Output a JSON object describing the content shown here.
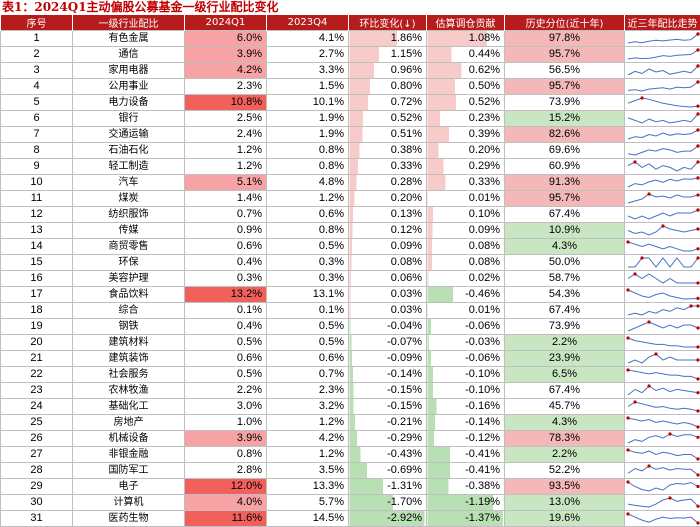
{
  "caption": "表1：2024Q1主动偏股公募基金一级行业配比变化",
  "columns": [
    "序号",
    "一级行业配比",
    "2024Q1",
    "2023Q4",
    "环比变化(↓)",
    "估算调仓贡献",
    "历史分位(近十年)",
    "近三年配比走势"
  ],
  "colors": {
    "header": "#b71c1c",
    "high_fill": "#f2605c",
    "mid_fill": "#f7a3a5",
    "pct_high": "#f4b8b8",
    "pct_low": "#c9e6c3",
    "bar_positive": "#f8cbcb",
    "bar_negative": "#b9dfb4",
    "sparkline": "#4472c4",
    "marker": "#c00000"
  },
  "rows": [
    {
      "no": "1",
      "industry": "有色金属",
      "q1": "6.0%",
      "q4": "4.1%",
      "chg": "1.86%",
      "chg_val": 1.86,
      "contrib": "1.08%",
      "contrib_val": 1.08,
      "pct": "97.8%",
      "pct_val": 97.8,
      "trend": [
        3.0,
        3.4,
        3.1,
        3.6,
        3.9,
        3.7,
        4.0,
        4.2,
        3.9,
        4.1,
        6.0
      ]
    },
    {
      "no": "2",
      "industry": "通信",
      "q1": "3.9%",
      "q4": "2.7%",
      "chg": "1.15%",
      "chg_val": 1.15,
      "contrib": "0.44%",
      "contrib_val": 0.44,
      "pct": "95.7%",
      "pct_val": 95.7,
      "trend": [
        1.5,
        1.8,
        1.6,
        1.7,
        2.0,
        2.4,
        2.2,
        2.5,
        2.6,
        2.7,
        3.9
      ]
    },
    {
      "no": "3",
      "industry": "家用电器",
      "q1": "4.2%",
      "q4": "3.3%",
      "chg": "0.96%",
      "chg_val": 0.96,
      "contrib": "0.62%",
      "contrib_val": 0.62,
      "pct": "56.5%",
      "pct_val": 56.5,
      "trend": [
        3.0,
        3.5,
        3.2,
        3.8,
        3.4,
        3.6,
        3.1,
        3.3,
        3.5,
        3.3,
        4.2
      ]
    },
    {
      "no": "4",
      "industry": "公用事业",
      "q1": "2.3%",
      "q4": "1.5%",
      "chg": "0.80%",
      "chg_val": 0.8,
      "contrib": "0.50%",
      "contrib_val": 0.5,
      "pct": "95.7%",
      "pct_val": 95.7,
      "trend": [
        1.0,
        1.1,
        0.9,
        1.2,
        1.3,
        1.4,
        1.2,
        1.5,
        1.4,
        1.5,
        2.3
      ]
    },
    {
      "no": "5",
      "industry": "电力设备",
      "q1": "10.8%",
      "q4": "10.1%",
      "chg": "0.72%",
      "chg_val": 0.72,
      "contrib": "0.52%",
      "contrib_val": 0.52,
      "pct": "73.9%",
      "pct_val": 73.9,
      "trend": [
        13.0,
        15.0,
        17.0,
        16.0,
        14.5,
        13.0,
        12.0,
        11.0,
        10.5,
        10.1,
        10.8
      ]
    },
    {
      "no": "6",
      "industry": "银行",
      "q1": "2.5%",
      "q4": "1.9%",
      "chg": "0.52%",
      "chg_val": 0.52,
      "contrib": "0.23%",
      "contrib_val": 0.23,
      "pct": "15.2%",
      "pct_val": 15.2,
      "trend": [
        2.2,
        2.0,
        1.8,
        2.1,
        1.9,
        2.0,
        1.8,
        1.9,
        2.0,
        1.9,
        2.5
      ]
    },
    {
      "no": "7",
      "industry": "交通运输",
      "q1": "2.4%",
      "q4": "1.9%",
      "chg": "0.51%",
      "chg_val": 0.51,
      "contrib": "0.39%",
      "contrib_val": 0.39,
      "pct": "82.6%",
      "pct_val": 82.6,
      "trend": [
        1.2,
        1.5,
        1.4,
        1.8,
        1.6,
        2.0,
        1.7,
        1.9,
        1.8,
        1.9,
        2.4
      ]
    },
    {
      "no": "8",
      "industry": "石油石化",
      "q1": "1.2%",
      "q4": "0.8%",
      "chg": "0.38%",
      "chg_val": 0.38,
      "contrib": "0.20%",
      "contrib_val": 0.2,
      "pct": "69.6%",
      "pct_val": 69.6,
      "trend": [
        0.6,
        0.5,
        0.7,
        0.9,
        0.8,
        1.0,
        0.9,
        0.7,
        0.8,
        0.8,
        1.2
      ]
    },
    {
      "no": "9",
      "industry": "轻工制造",
      "q1": "1.2%",
      "q4": "0.8%",
      "chg": "0.33%",
      "chg_val": 0.33,
      "contrib": "0.29%",
      "contrib_val": 0.29,
      "pct": "60.9%",
      "pct_val": 60.9,
      "trend": [
        1.0,
        1.2,
        0.9,
        1.1,
        0.8,
        1.0,
        0.9,
        0.7,
        0.9,
        0.8,
        1.2
      ]
    },
    {
      "no": "10",
      "industry": "汽车",
      "q1": "5.1%",
      "q4": "4.8%",
      "chg": "0.28%",
      "chg_val": 0.28,
      "contrib": "0.33%",
      "contrib_val": 0.33,
      "pct": "91.3%",
      "pct_val": 91.3,
      "trend": [
        3.0,
        3.8,
        3.5,
        4.2,
        4.6,
        4.1,
        4.8,
        4.4,
        4.9,
        4.8,
        5.1
      ]
    },
    {
      "no": "11",
      "industry": "煤炭",
      "q1": "1.4%",
      "q4": "1.2%",
      "chg": "0.20%",
      "chg_val": 0.2,
      "contrib": "0.01%",
      "contrib_val": 0.01,
      "pct": "95.7%",
      "pct_val": 95.7,
      "trend": [
        0.6,
        0.8,
        1.0,
        1.5,
        1.2,
        1.3,
        1.1,
        1.4,
        1.2,
        1.2,
        1.4
      ]
    },
    {
      "no": "12",
      "industry": "纺织服饰",
      "q1": "0.7%",
      "q4": "0.6%",
      "chg": "0.13%",
      "chg_val": 0.13,
      "contrib": "0.10%",
      "contrib_val": 0.1,
      "pct": "67.4%",
      "pct_val": 67.4,
      "trend": [
        0.5,
        0.4,
        0.5,
        0.4,
        0.5,
        0.6,
        0.5,
        0.6,
        0.6,
        0.6,
        0.7
      ]
    },
    {
      "no": "13",
      "industry": "传媒",
      "q1": "0.9%",
      "q4": "0.8%",
      "chg": "0.12%",
      "chg_val": 0.12,
      "contrib": "0.09%",
      "contrib_val": 0.09,
      "pct": "10.9%",
      "pct_val": 10.9,
      "trend": [
        0.8,
        0.6,
        0.7,
        0.5,
        0.7,
        1.1,
        0.9,
        0.8,
        0.7,
        0.8,
        0.9
      ]
    },
    {
      "no": "14",
      "industry": "商贸零售",
      "q1": "0.6%",
      "q4": "0.5%",
      "chg": "0.09%",
      "chg_val": 0.09,
      "contrib": "0.08%",
      "contrib_val": 0.08,
      "pct": "4.3%",
      "pct_val": 4.3,
      "trend": [
        0.9,
        0.8,
        0.7,
        0.8,
        0.7,
        0.6,
        0.7,
        0.6,
        0.5,
        0.5,
        0.6
      ]
    },
    {
      "no": "15",
      "industry": "环保",
      "q1": "0.4%",
      "q4": "0.3%",
      "chg": "0.08%",
      "chg_val": 0.08,
      "contrib": "0.08%",
      "contrib_val": 0.08,
      "pct": "50.0%",
      "pct_val": 50.0,
      "trend": [
        0.3,
        0.3,
        0.4,
        0.4,
        0.3,
        0.4,
        0.3,
        0.4,
        0.3,
        0.3,
        0.4
      ]
    },
    {
      "no": "16",
      "industry": "美容护理",
      "q1": "0.3%",
      "q4": "0.3%",
      "chg": "0.06%",
      "chg_val": 0.06,
      "contrib": "0.02%",
      "contrib_val": 0.02,
      "pct": "58.7%",
      "pct_val": 58.7,
      "trend": [
        0.4,
        0.5,
        0.4,
        0.5,
        0.4,
        0.3,
        0.4,
        0.3,
        0.3,
        0.3,
        0.3
      ]
    },
    {
      "no": "17",
      "industry": "食品饮料",
      "q1": "13.2%",
      "q4": "13.1%",
      "chg": "0.03%",
      "chg_val": 0.03,
      "contrib": "-0.46%",
      "contrib_val": -0.46,
      "pct": "54.3%",
      "pct_val": 54.3,
      "trend": [
        16.0,
        15.0,
        14.0,
        13.5,
        14.5,
        15.0,
        14.0,
        13.5,
        13.0,
        13.1,
        13.2
      ]
    },
    {
      "no": "18",
      "industry": "综合",
      "q1": "0.1%",
      "q4": "0.1%",
      "chg": "0.03%",
      "chg_val": 0.03,
      "contrib": "0.01%",
      "contrib_val": 0.01,
      "pct": "67.4%",
      "pct_val": 67.4,
      "trend": [
        0.05,
        0.06,
        0.05,
        0.07,
        0.06,
        0.08,
        0.07,
        0.09,
        0.08,
        0.1,
        0.1
      ]
    },
    {
      "no": "19",
      "industry": "钢铁",
      "q1": "0.4%",
      "q4": "0.5%",
      "chg": "-0.04%",
      "chg_val": -0.04,
      "contrib": "-0.06%",
      "contrib_val": -0.06,
      "pct": "73.9%",
      "pct_val": 73.9,
      "trend": [
        0.3,
        0.4,
        0.5,
        0.6,
        0.5,
        0.4,
        0.5,
        0.4,
        0.5,
        0.5,
        0.4
      ]
    },
    {
      "no": "20",
      "industry": "建筑材料",
      "q1": "0.5%",
      "q4": "0.5%",
      "chg": "-0.07%",
      "chg_val": -0.07,
      "contrib": "-0.03%",
      "contrib_val": -0.03,
      "pct": "2.2%",
      "pct_val": 2.2,
      "trend": [
        1.2,
        1.0,
        0.9,
        0.8,
        0.7,
        0.7,
        0.6,
        0.6,
        0.5,
        0.5,
        0.5
      ]
    },
    {
      "no": "21",
      "industry": "建筑装饰",
      "q1": "0.6%",
      "q4": "0.6%",
      "chg": "-0.09%",
      "chg_val": -0.09,
      "contrib": "-0.06%",
      "contrib_val": -0.06,
      "pct": "23.9%",
      "pct_val": 23.9,
      "trend": [
        0.5,
        0.6,
        0.5,
        0.7,
        0.8,
        0.6,
        0.7,
        0.6,
        0.6,
        0.6,
        0.6
      ]
    },
    {
      "no": "22",
      "industry": "社会服务",
      "q1": "0.5%",
      "q4": "0.7%",
      "chg": "-0.14%",
      "chg_val": -0.14,
      "contrib": "-0.10%",
      "contrib_val": -0.1,
      "pct": "6.5%",
      "pct_val": 6.5,
      "trend": [
        1.2,
        1.1,
        1.0,
        0.9,
        1.0,
        0.9,
        0.8,
        0.8,
        0.7,
        0.7,
        0.5
      ]
    },
    {
      "no": "23",
      "industry": "农林牧渔",
      "q1": "2.2%",
      "q4": "2.3%",
      "chg": "-0.15%",
      "chg_val": -0.15,
      "contrib": "-0.10%",
      "contrib_val": -0.1,
      "pct": "67.4%",
      "pct_val": 67.4,
      "trend": [
        2.0,
        2.5,
        2.2,
        2.8,
        2.4,
        2.6,
        2.3,
        2.5,
        2.4,
        2.3,
        2.2
      ]
    },
    {
      "no": "24",
      "industry": "基础化工",
      "q1": "3.0%",
      "q4": "3.2%",
      "chg": "-0.15%",
      "chg_val": -0.15,
      "contrib": "-0.16%",
      "contrib_val": -0.16,
      "pct": "45.7%",
      "pct_val": 45.7,
      "trend": [
        3.5,
        4.0,
        3.8,
        3.6,
        3.4,
        3.5,
        3.3,
        3.2,
        3.3,
        3.2,
        3.0
      ]
    },
    {
      "no": "25",
      "industry": "房地产",
      "q1": "1.0%",
      "q4": "1.2%",
      "chg": "-0.21%",
      "chg_val": -0.21,
      "contrib": "-0.14%",
      "contrib_val": -0.14,
      "pct": "4.3%",
      "pct_val": 4.3,
      "trend": [
        1.6,
        1.5,
        1.4,
        1.5,
        1.3,
        1.4,
        1.3,
        1.2,
        1.3,
        1.2,
        1.0
      ]
    },
    {
      "no": "26",
      "industry": "机械设备",
      "q1": "3.9%",
      "q4": "4.2%",
      "chg": "-0.29%",
      "chg_val": -0.29,
      "contrib": "-0.12%",
      "contrib_val": -0.12,
      "pct": "78.3%",
      "pct_val": 78.3,
      "trend": [
        3.2,
        3.6,
        3.4,
        3.9,
        4.1,
        3.8,
        4.3,
        4.0,
        4.2,
        4.2,
        3.9
      ]
    },
    {
      "no": "27",
      "industry": "非银金融",
      "q1": "0.8%",
      "q4": "1.2%",
      "chg": "-0.43%",
      "chg_val": -0.43,
      "contrib": "-0.41%",
      "contrib_val": -0.41,
      "pct": "2.2%",
      "pct_val": 2.2,
      "trend": [
        1.6,
        1.4,
        1.3,
        1.5,
        1.2,
        1.4,
        1.3,
        1.1,
        1.2,
        1.2,
        0.8
      ]
    },
    {
      "no": "28",
      "industry": "国防军工",
      "q1": "2.8%",
      "q4": "3.5%",
      "chg": "-0.69%",
      "chg_val": -0.69,
      "contrib": "-0.41%",
      "contrib_val": -0.41,
      "pct": "52.2%",
      "pct_val": 52.2,
      "trend": [
        3.0,
        3.6,
        3.3,
        3.9,
        3.5,
        3.7,
        3.4,
        3.6,
        3.5,
        3.5,
        2.8
      ]
    },
    {
      "no": "29",
      "industry": "电子",
      "q1": "12.0%",
      "q4": "13.3%",
      "chg": "-1.31%",
      "chg_val": -1.31,
      "contrib": "-0.38%",
      "contrib_val": -0.38,
      "pct": "93.5%",
      "pct_val": 93.5,
      "trend": [
        13.5,
        12.0,
        11.0,
        10.5,
        11.5,
        10.8,
        12.5,
        13.0,
        12.8,
        13.3,
        12.0
      ]
    },
    {
      "no": "30",
      "industry": "计算机",
      "q1": "4.0%",
      "q4": "5.7%",
      "chg": "-1.70%",
      "chg_val": -1.7,
      "contrib": "-1.19%",
      "contrib_val": -1.19,
      "pct": "13.0%",
      "pct_val": 13.0,
      "trend": [
        4.5,
        4.2,
        4.0,
        3.8,
        4.5,
        5.5,
        6.0,
        5.2,
        5.5,
        5.7,
        4.0
      ]
    },
    {
      "no": "31",
      "industry": "医药生物",
      "q1": "11.6%",
      "q4": "14.5%",
      "chg": "-2.92%",
      "chg_val": -2.92,
      "contrib": "-1.37%",
      "contrib_val": -1.37,
      "pct": "19.6%",
      "pct_val": 19.6,
      "trend": [
        16.0,
        14.5,
        13.0,
        12.0,
        13.5,
        14.5,
        13.8,
        14.2,
        14.0,
        14.5,
        11.6
      ]
    }
  ]
}
